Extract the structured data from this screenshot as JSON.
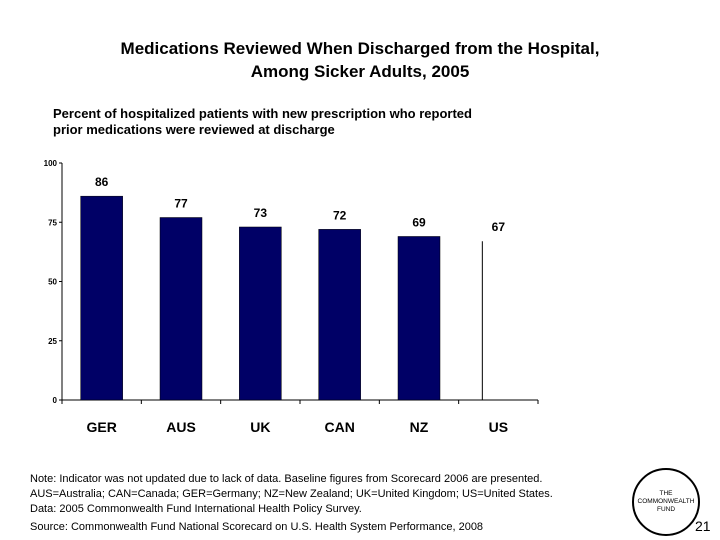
{
  "title_line1": "Medications Reviewed When Discharged from the Hospital,",
  "title_line2": "Among Sicker Adults, 2005",
  "subtitle_line1": "Percent of hospitalized patients with new prescription who reported",
  "subtitle_line2": "prior medications were reviewed at discharge",
  "chart_data": {
    "type": "bar",
    "categories": [
      "GER",
      "AUS",
      "UK",
      "CAN",
      "NZ",
      "US"
    ],
    "values": [
      86,
      77,
      73,
      72,
      69,
      67
    ],
    "ylim": [
      0,
      100
    ],
    "yticks": [
      0,
      25,
      50,
      75,
      100
    ],
    "grid": false,
    "bar_color": "#000066",
    "note": "US value shown as a line only (not updated)"
  },
  "note_lines": [
    "Note: Indicator was not updated due to lack of data. Baseline figures from Scorecard 2006 are presented.",
    "AUS=Australia; CAN=Canada; GER=Germany; NZ=New Zealand; UK=United Kingdom; US=United States.",
    "Data: 2005 Commonwealth Fund International Health Policy Survey."
  ],
  "source": "Source: Commonwealth Fund National Scorecard on U.S. Health System Performance, 2008",
  "logo": {
    "line1": "THE",
    "line2": "COMMONWEALTH",
    "line3": "FUND"
  },
  "page_number": "21"
}
